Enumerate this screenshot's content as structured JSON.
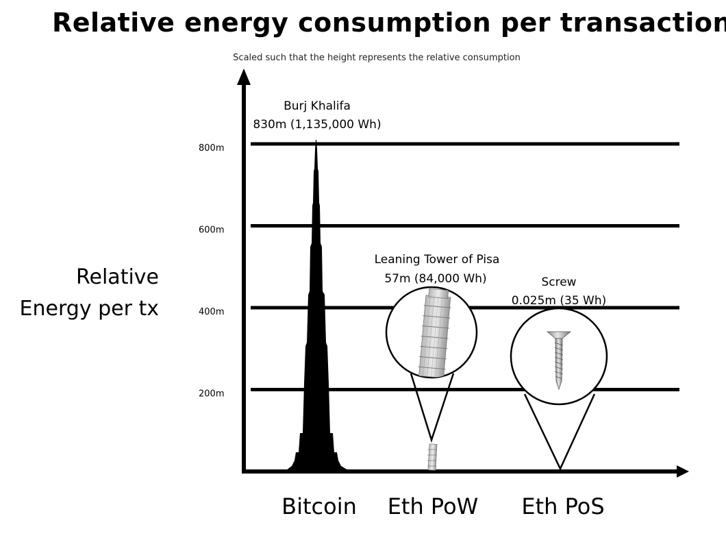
{
  "chart_data": {
    "type": "bar",
    "title": "Relative energy consumption per transaction",
    "subtitle": "Scaled such that the height represents the relative consumption",
    "ylabel": [
      "Relative",
      "Energy per tx"
    ],
    "xlabel": "",
    "ylim": [
      0,
      900
    ],
    "y_ticks": [
      {
        "value": 200,
        "label": "200m"
      },
      {
        "value": 400,
        "label": "400m"
      },
      {
        "value": 600,
        "label": "600m"
      },
      {
        "value": 800,
        "label": "800m"
      }
    ],
    "grid": true,
    "categories": [
      "Bitcoin",
      "Eth PoW",
      "Eth PoS"
    ],
    "values": [
      830,
      57,
      0.025
    ],
    "annotations": [
      {
        "category": "Bitcoin",
        "object": "Burj Khalifa",
        "detail": "830m (1,135,000 Wh)",
        "icon": "skyscraper-icon"
      },
      {
        "category": "Eth PoW",
        "object": "Leaning Tower of Pisa",
        "detail": "57m (84,000 Wh)",
        "icon": "tower-icon"
      },
      {
        "category": "Eth PoS",
        "object": "Screw",
        "detail": "0.025m (35 Wh)",
        "icon": "screw-icon"
      }
    ]
  }
}
